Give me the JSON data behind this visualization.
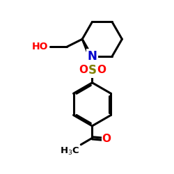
{
  "bg_color": "#ffffff",
  "bond_color": "#000000",
  "N_color": "#0000cc",
  "O_color": "#ff0000",
  "S_color": "#808000",
  "HO_color": "#ff0000",
  "line_width": 2.2,
  "fig_size": [
    2.5,
    2.5
  ],
  "dpi": 100,
  "xlim": [
    0,
    10
  ],
  "ylim": [
    0,
    10
  ]
}
